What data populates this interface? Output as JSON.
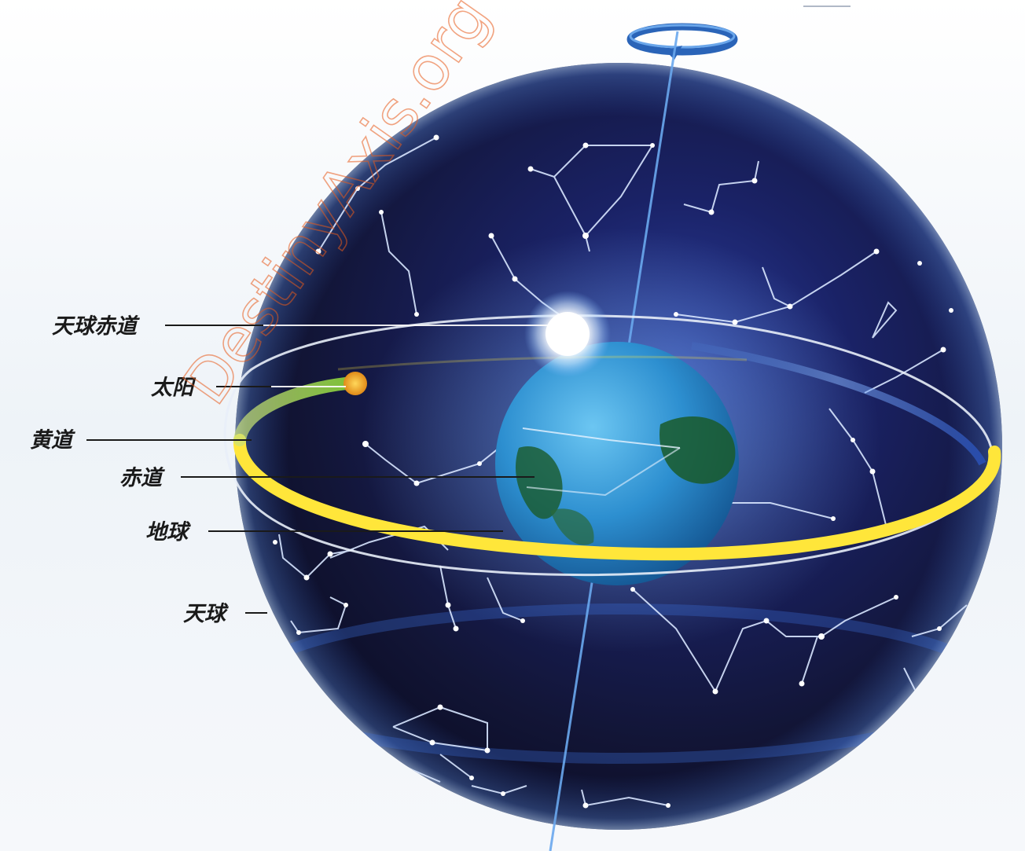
{
  "labels": {
    "celestial_equator": "天球赤道",
    "sun": "太阳",
    "ecliptic": "黄道",
    "equator": "赤道",
    "earth": "地球",
    "celestial_sphere": "天球"
  },
  "watermark": "DestinyAxis.org",
  "colors": {
    "background": "#ffffff",
    "sphere_dark": "#0d0f2e",
    "sphere_mid": "#1d2a78",
    "earth_blue": "#2d8fd0",
    "earth_land": "#1a5a2a",
    "ecliptic": "#ffe63a",
    "sun_trail": "#9fd24a",
    "sun_dot": "#f2a82a",
    "watermark": "#e85a1a"
  }
}
